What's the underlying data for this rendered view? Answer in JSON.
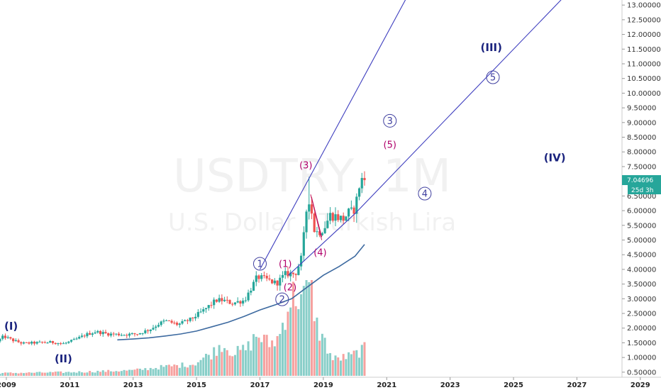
{
  "watermark": {
    "symbol": "USDTRY, 1M",
    "description": "U.S. Dollar / Turkish Lira"
  },
  "price_tags": {
    "last_price": "7.04696",
    "countdown": "25d 3h"
  },
  "colors": {
    "up": "#26a69a",
    "down": "#ef5350",
    "channel": "#3f3fbf",
    "ma": "#3d6aa0",
    "major_label": "#1a237e",
    "circle_label": "#3f3f9f",
    "paren_label": "#b0006b",
    "pink_line": "#c2185b"
  },
  "chart_data": {
    "type": "candlestick",
    "title": "",
    "xlabel": "",
    "ylabel": "",
    "y_axis_side": "right",
    "ylim": [
      0.4,
      13.1
    ],
    "xlim": [
      2008.8,
      2028.4
    ],
    "yticks": [
      "0.50000",
      "1.00000",
      "1.50000",
      "2.00000",
      "2.50000",
      "3.00000",
      "3.50000",
      "4.00000",
      "4.50000",
      "5.00000",
      "5.50000",
      "6.00000",
      "6.50000",
      "7.00000",
      "7.50000",
      "8.00000",
      "8.50000",
      "9.00000",
      "9.50000",
      "10.00000",
      "10.50000",
      "11.00000",
      "11.50000",
      "12.00000",
      "12.50000",
      "13.00000"
    ],
    "xticks": [
      "2009",
      "2011",
      "2013",
      "2015",
      "2017",
      "2019",
      "2021",
      "2023",
      "2025",
      "2027",
      "2029"
    ],
    "xtick_years": [
      2009,
      2011,
      2013,
      2015,
      2017,
      2019,
      2021,
      2023,
      2025,
      2027,
      2029
    ],
    "price_anchors": [
      [
        2008.8,
        1.55
      ],
      [
        2009.0,
        1.72
      ],
      [
        2009.3,
        1.58
      ],
      [
        2009.6,
        1.48
      ],
      [
        2010.0,
        1.5
      ],
      [
        2010.5,
        1.52
      ],
      [
        2010.9,
        1.47
      ],
      [
        2011.2,
        1.58
      ],
      [
        2011.6,
        1.78
      ],
      [
        2011.9,
        1.88
      ],
      [
        2012.3,
        1.8
      ],
      [
        2012.8,
        1.78
      ],
      [
        2013.2,
        1.8
      ],
      [
        2013.6,
        1.95
      ],
      [
        2013.9,
        2.15
      ],
      [
        2014.1,
        2.25
      ],
      [
        2014.5,
        2.12
      ],
      [
        2014.9,
        2.3
      ],
      [
        2015.3,
        2.6
      ],
      [
        2015.7,
        2.95
      ],
      [
        2015.9,
        2.95
      ],
      [
        2016.2,
        2.85
      ],
      [
        2016.6,
        2.95
      ],
      [
        2016.9,
        3.55
      ],
      [
        2017.0,
        3.75
      ],
      [
        2017.3,
        3.65
      ],
      [
        2017.6,
        3.52
      ],
      [
        2017.9,
        3.85
      ],
      [
        2018.2,
        3.85
      ],
      [
        2018.4,
        4.4
      ],
      [
        2018.6,
        6.55
      ],
      [
        2018.7,
        6.05
      ],
      [
        2018.8,
        5.35
      ],
      [
        2018.9,
        5.25
      ],
      [
        2019.1,
        5.4
      ],
      [
        2019.3,
        5.85
      ],
      [
        2019.5,
        5.8
      ],
      [
        2019.7,
        5.7
      ],
      [
        2019.9,
        5.95
      ],
      [
        2020.0,
        5.95
      ],
      [
        2020.1,
        6.15
      ],
      [
        2020.2,
        6.8
      ],
      [
        2020.3,
        7.05
      ]
    ],
    "ma_series": {
      "x": [
        2012.5,
        2013.0,
        2013.5,
        2014.0,
        2014.5,
        2015.0,
        2015.5,
        2016.0,
        2016.5,
        2017.0,
        2017.5,
        2018.0,
        2018.5,
        2019.0,
        2019.5,
        2020.0,
        2020.3
      ],
      "y": [
        1.6,
        1.63,
        1.67,
        1.73,
        1.8,
        1.9,
        2.05,
        2.2,
        2.4,
        2.62,
        2.8,
        3.0,
        3.4,
        3.8,
        4.1,
        4.45,
        4.85
      ]
    },
    "volume_relative": [
      [
        2008.8,
        0.03
      ],
      [
        2011.0,
        0.04
      ],
      [
        2012.0,
        0.05
      ],
      [
        2013.0,
        0.06
      ],
      [
        2014.0,
        0.1
      ],
      [
        2014.9,
        0.13
      ],
      [
        2015.5,
        0.25
      ],
      [
        2015.8,
        0.35
      ],
      [
        2016.2,
        0.25
      ],
      [
        2016.6,
        0.3
      ],
      [
        2016.9,
        0.45
      ],
      [
        2017.3,
        0.35
      ],
      [
        2017.6,
        0.42
      ],
      [
        2017.9,
        0.8
      ],
      [
        2018.1,
        0.9
      ],
      [
        2018.4,
        0.85
      ],
      [
        2018.6,
        1.0
      ],
      [
        2018.8,
        0.55
      ],
      [
        2019.0,
        0.4
      ],
      [
        2019.3,
        0.18
      ],
      [
        2019.6,
        0.2
      ],
      [
        2019.9,
        0.22
      ],
      [
        2020.2,
        0.28
      ],
      [
        2020.35,
        0.3
      ]
    ],
    "channel_lines": [
      {
        "name": "upper",
        "points": [
          [
            2017.0,
            4.0
          ],
          [
            2018.6,
            7.2
          ],
          [
            2021.7,
            13.4
          ]
        ]
      },
      {
        "name": "lower",
        "points": [
          [
            2017.9,
            3.8
          ],
          [
            2020.0,
            5.9
          ],
          [
            2026.7,
            13.4
          ]
        ]
      }
    ],
    "pink_lines": [
      [
        [
          2018.6,
          6.55
        ],
        [
          2018.95,
          5.0
        ]
      ],
      [
        [
          2018.63,
          6.45
        ],
        [
          2018.95,
          5.1
        ]
      ]
    ],
    "wave_labels": [
      {
        "text": "(I)",
        "x": 2009.15,
        "y": 2.06,
        "style": "major"
      },
      {
        "text": "(II)",
        "x": 2010.8,
        "y": 0.95,
        "style": "major"
      },
      {
        "text": "(III)",
        "x": 2024.3,
        "y": 11.55,
        "style": "major"
      },
      {
        "text": "(IV)",
        "x": 2026.3,
        "y": 7.8,
        "style": "major"
      },
      {
        "text": "1",
        "x": 2017.0,
        "y": 4.19,
        "style": "circle"
      },
      {
        "text": "2",
        "x": 2017.7,
        "y": 2.98,
        "style": "circle"
      },
      {
        "text": "3",
        "x": 2021.1,
        "y": 9.06,
        "style": "circle"
      },
      {
        "text": "4",
        "x": 2022.2,
        "y": 6.58,
        "style": "circle"
      },
      {
        "text": "5",
        "x": 2024.35,
        "y": 10.54,
        "style": "circle"
      },
      {
        "text": "(1)",
        "x": 2017.8,
        "y": 4.19,
        "style": "paren"
      },
      {
        "text": "(2)",
        "x": 2017.95,
        "y": 3.39,
        "style": "paren"
      },
      {
        "text": "(3)",
        "x": 2018.45,
        "y": 7.55,
        "style": "paren"
      },
      {
        "text": "(4)",
        "x": 2018.9,
        "y": 4.58,
        "style": "paren"
      },
      {
        "text": "(5)",
        "x": 2021.1,
        "y": 8.25,
        "style": "paren"
      }
    ]
  }
}
